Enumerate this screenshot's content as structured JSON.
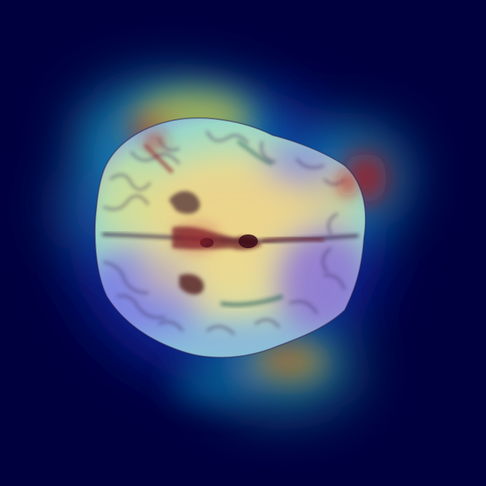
{
  "image": {
    "subject": "brain-mri-axial-slice",
    "overlay": "attention-heatmap",
    "colormap": [
      "#00003f",
      "#0a2aa0",
      "#16a0d8",
      "#3fd0a0",
      "#c8e05a",
      "#f0b040",
      "#c01818",
      "#7a0000"
    ],
    "background_color": "#00003f"
  }
}
